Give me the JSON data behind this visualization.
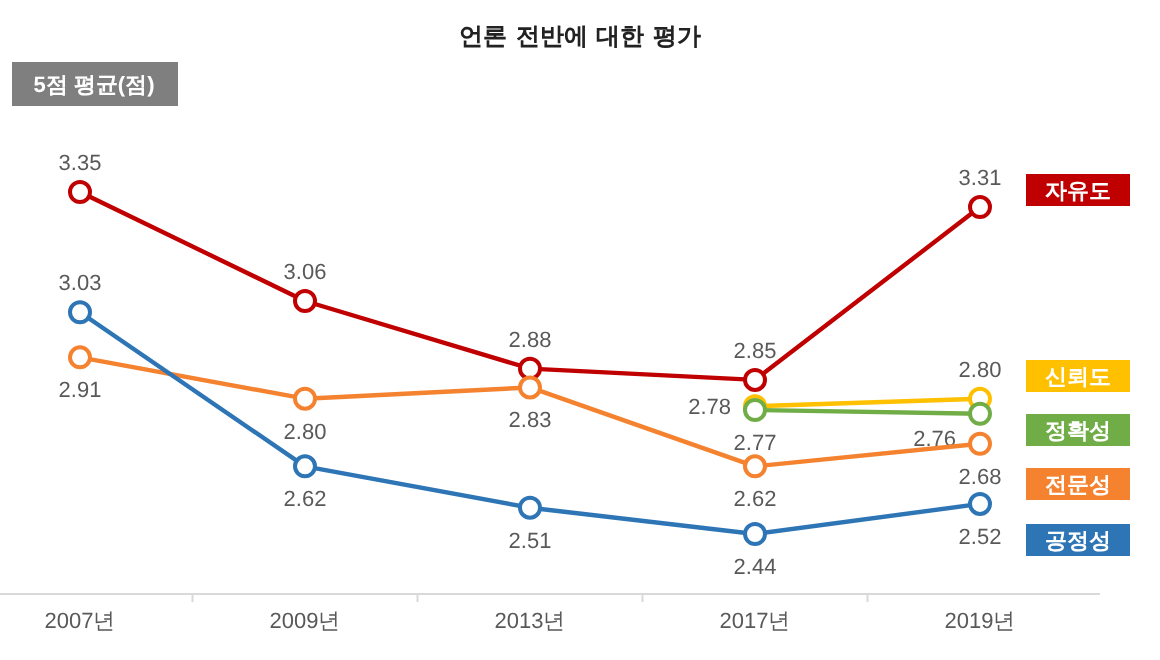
{
  "chart_data": {
    "type": "line",
    "title": "언론 전반에 대한 평가",
    "ylabel": "5점 평균(점)",
    "categories": [
      "2007년",
      "2009년",
      "2013년",
      "2017년",
      "2019년"
    ],
    "tick_labels": "x",
    "marker": "circle",
    "legend": "right",
    "series": [
      {
        "name": "자유도",
        "color": "#c00000",
        "values": [
          3.35,
          3.06,
          2.88,
          2.85,
          3.31
        ],
        "value_labels": [
          "3.35",
          "3.06",
          "2.88",
          "2.85",
          "3.31"
        ]
      },
      {
        "name": "신뢰도",
        "color": "#ffc000",
        "values": [
          null,
          null,
          null,
          2.78,
          2.8
        ],
        "value_labels": [
          null,
          null,
          null,
          "2.78",
          "2.80"
        ]
      },
      {
        "name": "정확성",
        "color": "#70ad47",
        "values": [
          null,
          null,
          null,
          2.77,
          2.76
        ],
        "value_labels": [
          null,
          null,
          null,
          "2.77",
          "2.76"
        ]
      },
      {
        "name": "전문성",
        "color": "#f4822f",
        "values": [
          2.91,
          2.8,
          2.83,
          2.62,
          2.68
        ],
        "value_labels": [
          "2.91",
          "2.80",
          "2.83",
          "2.62",
          "2.68"
        ]
      },
      {
        "name": "공정성",
        "color": "#2e75b6",
        "values": [
          3.03,
          2.62,
          2.51,
          2.44,
          2.52
        ],
        "value_labels": [
          "3.03",
          "2.62",
          "2.51",
          "2.44",
          "2.52"
        ]
      }
    ]
  }
}
